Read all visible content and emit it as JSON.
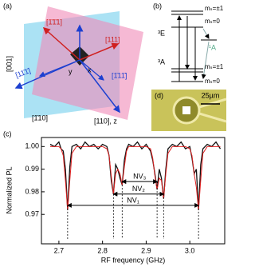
{
  "panel_labels": [
    "(a)",
    "(b)",
    "(c)",
    "(d)"
  ],
  "crystal": {
    "axes": [
      "[001]",
      "[1̄10]",
      "[110], z"
    ],
    "directions": [
      "[1̄1̄1]",
      "[111]",
      "[11̄1̄]",
      "[1̄11̄]"
    ],
    "frame": [
      "y",
      "x"
    ]
  },
  "levels": {
    "upper_state": "³E",
    "singlet": "¹A",
    "ground_state": "³A",
    "sublevels": [
      "mₛ=±1",
      "mₛ=0",
      "mₛ=±1",
      "mₛ=0"
    ]
  },
  "micrograph": {
    "scale_bar": "25µm"
  },
  "chart_data": {
    "type": "line",
    "xlabel": "RF frequency (GHz)",
    "ylabel": "Normalized PL",
    "x": [
      2.68,
      2.69,
      2.7,
      2.705,
      2.71,
      2.715,
      2.72,
      2.725,
      2.73,
      2.74,
      2.75,
      2.76,
      2.77,
      2.78,
      2.79,
      2.8,
      2.81,
      2.815,
      2.82,
      2.825,
      2.83,
      2.835,
      2.84,
      2.845,
      2.85,
      2.855,
      2.86,
      2.87,
      2.88,
      2.89,
      2.9,
      2.91,
      2.915,
      2.92,
      2.925,
      2.93,
      2.935,
      2.94,
      2.945,
      2.95,
      2.96,
      2.97,
      2.98,
      2.99,
      3.0,
      3.005,
      3.01,
      3.015,
      3.02,
      3.025,
      3.03,
      3.04,
      3.05,
      3.06,
      3.07
    ],
    "series": [
      {
        "color": "#111111",
        "values": [
          1.001,
          1.0,
          1.002,
          0.999,
          0.998,
          0.99,
          0.972,
          0.991,
          1.0,
          1.001,
          0.999,
          1.002,
          1.0,
          1.001,
          0.999,
          1.001,
          1.0,
          0.996,
          0.985,
          0.979,
          0.992,
          0.99,
          0.986,
          0.983,
          0.994,
          0.999,
          1.001,
          1.0,
          1.002,
          0.999,
          1.001,
          0.998,
          0.994,
          0.988,
          0.981,
          0.99,
          0.986,
          0.977,
          0.99,
          0.999,
          1.001,
          1.0,
          1.002,
          0.999,
          1.0,
          0.995,
          0.988,
          0.99,
          0.972,
          0.992,
          0.999,
          1.001,
          1.0,
          1.002,
          0.999
        ]
      },
      {
        "color": "#e02020",
        "values": [
          1.0,
          1.0,
          1.0,
          0.999,
          0.996,
          0.985,
          0.972,
          0.985,
          0.997,
          1.0,
          1.0,
          1.0,
          1.0,
          1.0,
          1.0,
          1.0,
          0.999,
          0.996,
          0.987,
          0.979,
          0.988,
          0.99,
          0.988,
          0.983,
          0.991,
          0.998,
          1.0,
          1.0,
          1.0,
          1.0,
          1.0,
          0.999,
          0.995,
          0.987,
          0.981,
          0.986,
          0.985,
          0.977,
          0.988,
          0.997,
          1.0,
          1.0,
          1.0,
          1.0,
          0.999,
          0.996,
          0.988,
          0.982,
          0.972,
          0.985,
          0.997,
          1.0,
          1.0,
          1.0,
          1.0
        ]
      }
    ],
    "xlim": [
      2.66,
      3.08
    ],
    "ylim": [
      0.957,
      1.004
    ],
    "xticks": [
      2.7,
      2.8,
      2.9,
      {
        "value": 3,
        "label": "3.0"
      }
    ],
    "yticks": [
      0.97,
      0.98,
      0.99,
      {
        "value": 1,
        "label": "1.00"
      }
    ],
    "annotations": [
      {
        "text": "NV₃",
        "x": [
          2.845,
          2.925
        ],
        "y": 0.9845
      },
      {
        "text": "NV₂",
        "x": [
          2.825,
          2.94
        ],
        "y": 0.979
      },
      {
        "text": "NV₁",
        "x": [
          2.72,
          3.02
        ],
        "y": 0.974
      }
    ]
  }
}
